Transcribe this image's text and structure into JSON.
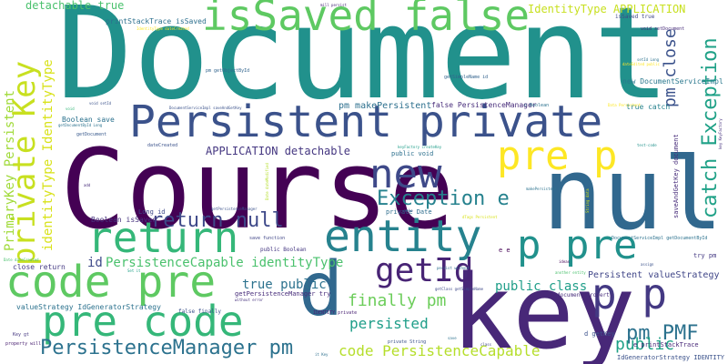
{
  "words": [
    {
      "text": "Document",
      "color": "#21918c"
    },
    {
      "text": "Course",
      "color": "#440154"
    },
    {
      "text": "null",
      "color": "#31688e"
    },
    {
      "text": "key",
      "color": "#482878"
    },
    {
      "text": "Persistent private",
      "color": "#3b528b"
    },
    {
      "text": "isSaved false",
      "color": "#5ec962"
    },
    {
      "text": "code pre",
      "color": "#5ec962"
    },
    {
      "text": "pre code",
      "color": "#35b779"
    },
    {
      "text": "d",
      "color": "#31688e"
    },
    {
      "text": "p p",
      "color": "#443983"
    },
    {
      "text": "entity",
      "color": "#26828e"
    },
    {
      "text": "return",
      "color": "#35b779"
    },
    {
      "text": "new",
      "color": "#3e4989"
    },
    {
      "text": "pre p",
      "color": "#fde725"
    },
    {
      "text": "p pre",
      "color": "#21918c"
    },
    {
      "text": "getId",
      "color": "#482475"
    },
    {
      "text": "private Key",
      "color": "#c8e020"
    },
    {
      "text": "return null",
      "color": "#3e4989"
    },
    {
      "text": "Exception e",
      "color": "#26828e"
    },
    {
      "text": "PersistenceManager pm",
      "color": "#2c728e"
    },
    {
      "text": "catch Exception",
      "color": "#1fa187"
    },
    {
      "text": "pm close",
      "color": "#3b528b"
    },
    {
      "text": "finally pm",
      "color": "#6ccd5a"
    },
    {
      "text": "pm PMF",
      "color": "#2c728e"
    },
    {
      "text": "persisted",
      "color": "#1f9e89"
    },
    {
      "text": "public",
      "color": "#1fa187"
    },
    {
      "text": "code PersistenceCapable",
      "color": "#b5de2b"
    },
    {
      "text": "PrimaryKey Persistent",
      "color": "#a0da39"
    },
    {
      "text": "identityType IdentityType",
      "color": "#d8e219"
    },
    {
      "text": "PersistenceCapable identityType",
      "color": "#4ac16d"
    },
    {
      "text": "true public",
      "color": "#2c728e"
    },
    {
      "text": "public class",
      "color": "#1f9e89"
    },
    {
      "text": "id",
      "color": "#3e4989"
    },
    {
      "text": "APPLICATION detachable",
      "color": "#453781"
    },
    {
      "text": "IdentityType APPLICATION",
      "color": "#c8e020"
    },
    {
      "text": "detachable true",
      "color": "#4ac16d"
    },
    {
      "text": "Persistent valueStrategy",
      "color": "#404688"
    },
    {
      "text": "pm makePersistent",
      "color": "#2d708e"
    },
    {
      "text": "saveAndGetKey document",
      "color": "#472c7a"
    },
    {
      "text": "new DocumentServiceImpl",
      "color": "#2a788e"
    },
    {
      "text": "Boolean save",
      "color": "#2c728e"
    },
    {
      "text": "Boolean isSaved",
      "color": "#46327e"
    },
    {
      "text": "printStackTrace isSaved",
      "color": "#2d708e"
    },
    {
      "text": "valueStrategy IdGeneratorStrategy",
      "color": "#2c728e"
    },
    {
      "text": "IdGeneratorStrategy IDENTITY",
      "color": "#3b528b"
    },
    {
      "text": "e printStackTrace",
      "color": "#482878"
    },
    {
      "text": "false PersistenceManager",
      "color": "#472c7a"
    },
    {
      "text": "close return",
      "color": "#443983"
    },
    {
      "text": "getPersistenceManager try",
      "color": "#472c7a"
    },
    {
      "text": "true catch",
      "color": "#26828e"
    },
    {
      "text": "public void",
      "color": "#2d708e"
    },
    {
      "text": "private Date",
      "color": "#2e6e8e"
    },
    {
      "text": "Long id",
      "color": "#3e4989"
    },
    {
      "text": "public Boolean",
      "color": "#453781"
    },
    {
      "text": "document property",
      "color": "#472d7b"
    },
    {
      "text": "d getKey",
      "color": "#3b528b"
    },
    {
      "text": "try pm",
      "color": "#443983"
    },
    {
      "text": "isSaved true",
      "color": "#3f4788"
    },
    {
      "text": "dateCreated",
      "color": "#3b528b"
    },
    {
      "text": "IDENTITY private",
      "color": "#482173"
    },
    {
      "text": "getSimpleName id",
      "color": "#33638d"
    },
    {
      "text": "getDocument",
      "color": "#38598c"
    },
    {
      "text": "Date dateCreated",
      "color": "#4ac16d"
    },
    {
      "text": "pm getObjectById",
      "color": "#32658e"
    },
    {
      "text": "getDocumentById Long",
      "color": "#2c728e"
    },
    {
      "text": "void setDocument",
      "color": "#472c7a"
    },
    {
      "text": "void setId",
      "color": "#3b528b"
    },
    {
      "text": "save function",
      "color": "#404688"
    },
    {
      "text": "without error",
      "color": "#46327e"
    },
    {
      "text": "Key gt",
      "color": "#453781"
    },
    {
      "text": "property will",
      "color": "#481f70"
    },
    {
      "text": "it Key",
      "color": "#2d708e"
    },
    {
      "text": "private String",
      "color": "#3b528b"
    },
    {
      "text": "another entity",
      "color": "#4ac16d"
    },
    {
      "text": "persist without",
      "color": "#2e6e8e"
    },
    {
      "text": "Set it",
      "color": "#1fa187"
    },
    {
      "text": "false finally",
      "color": "#3b528b"
    },
    {
      "text": "keyFactory createKey",
      "color": "#1f9e89"
    },
    {
      "text": "makePersistent c",
      "color": "#2c728e"
    },
    {
      "text": "DocumentServiceImpl getDocumentById",
      "color": "#2c728e"
    },
    {
      "text": "getClass getSimpleName",
      "color": "#3e4989"
    },
    {
      "text": "DocumentServiceImpl saveAndGetKey",
      "color": "#3b528b"
    },
    {
      "text": "c Boolean",
      "color": "#2c728e"
    },
    {
      "text": "getPersistenceManager",
      "color": "#3b528b"
    },
    {
      "text": "test-code",
      "color": "#21918c"
    },
    {
      "text": "String data",
      "color": "#d8e219"
    },
    {
      "text": "Date dateModified",
      "color": "#b5de2b"
    },
    {
      "text": "key KeyFactory",
      "color": "#46327e"
    },
    {
      "text": "mill persist",
      "color": "#482878"
    },
    {
      "text": "setId Long",
      "color": "#2c728e"
    },
    {
      "text": "dateEdited public",
      "color": "#fde725"
    },
    {
      "text": "IdentityType dateCreated",
      "color": "#fde725"
    },
    {
      "text": "Data Persistent",
      "color": "#fde725"
    },
    {
      "text": "dTags Persistent",
      "color": "#d8e219"
    },
    {
      "text": "ideas",
      "color": "#440154"
    },
    {
      "text": "assign",
      "color": "#3b528b"
    },
    {
      "text": "class",
      "color": "#404688"
    },
    {
      "text": "save",
      "color": "#2c728e"
    },
    {
      "text": "make",
      "color": "#3b528b"
    },
    {
      "text": "add",
      "color": "#472c7a"
    },
    {
      "text": "void",
      "color": "#35b779"
    },
    {
      "text": "e e",
      "color": "#440154"
    }
  ]
}
